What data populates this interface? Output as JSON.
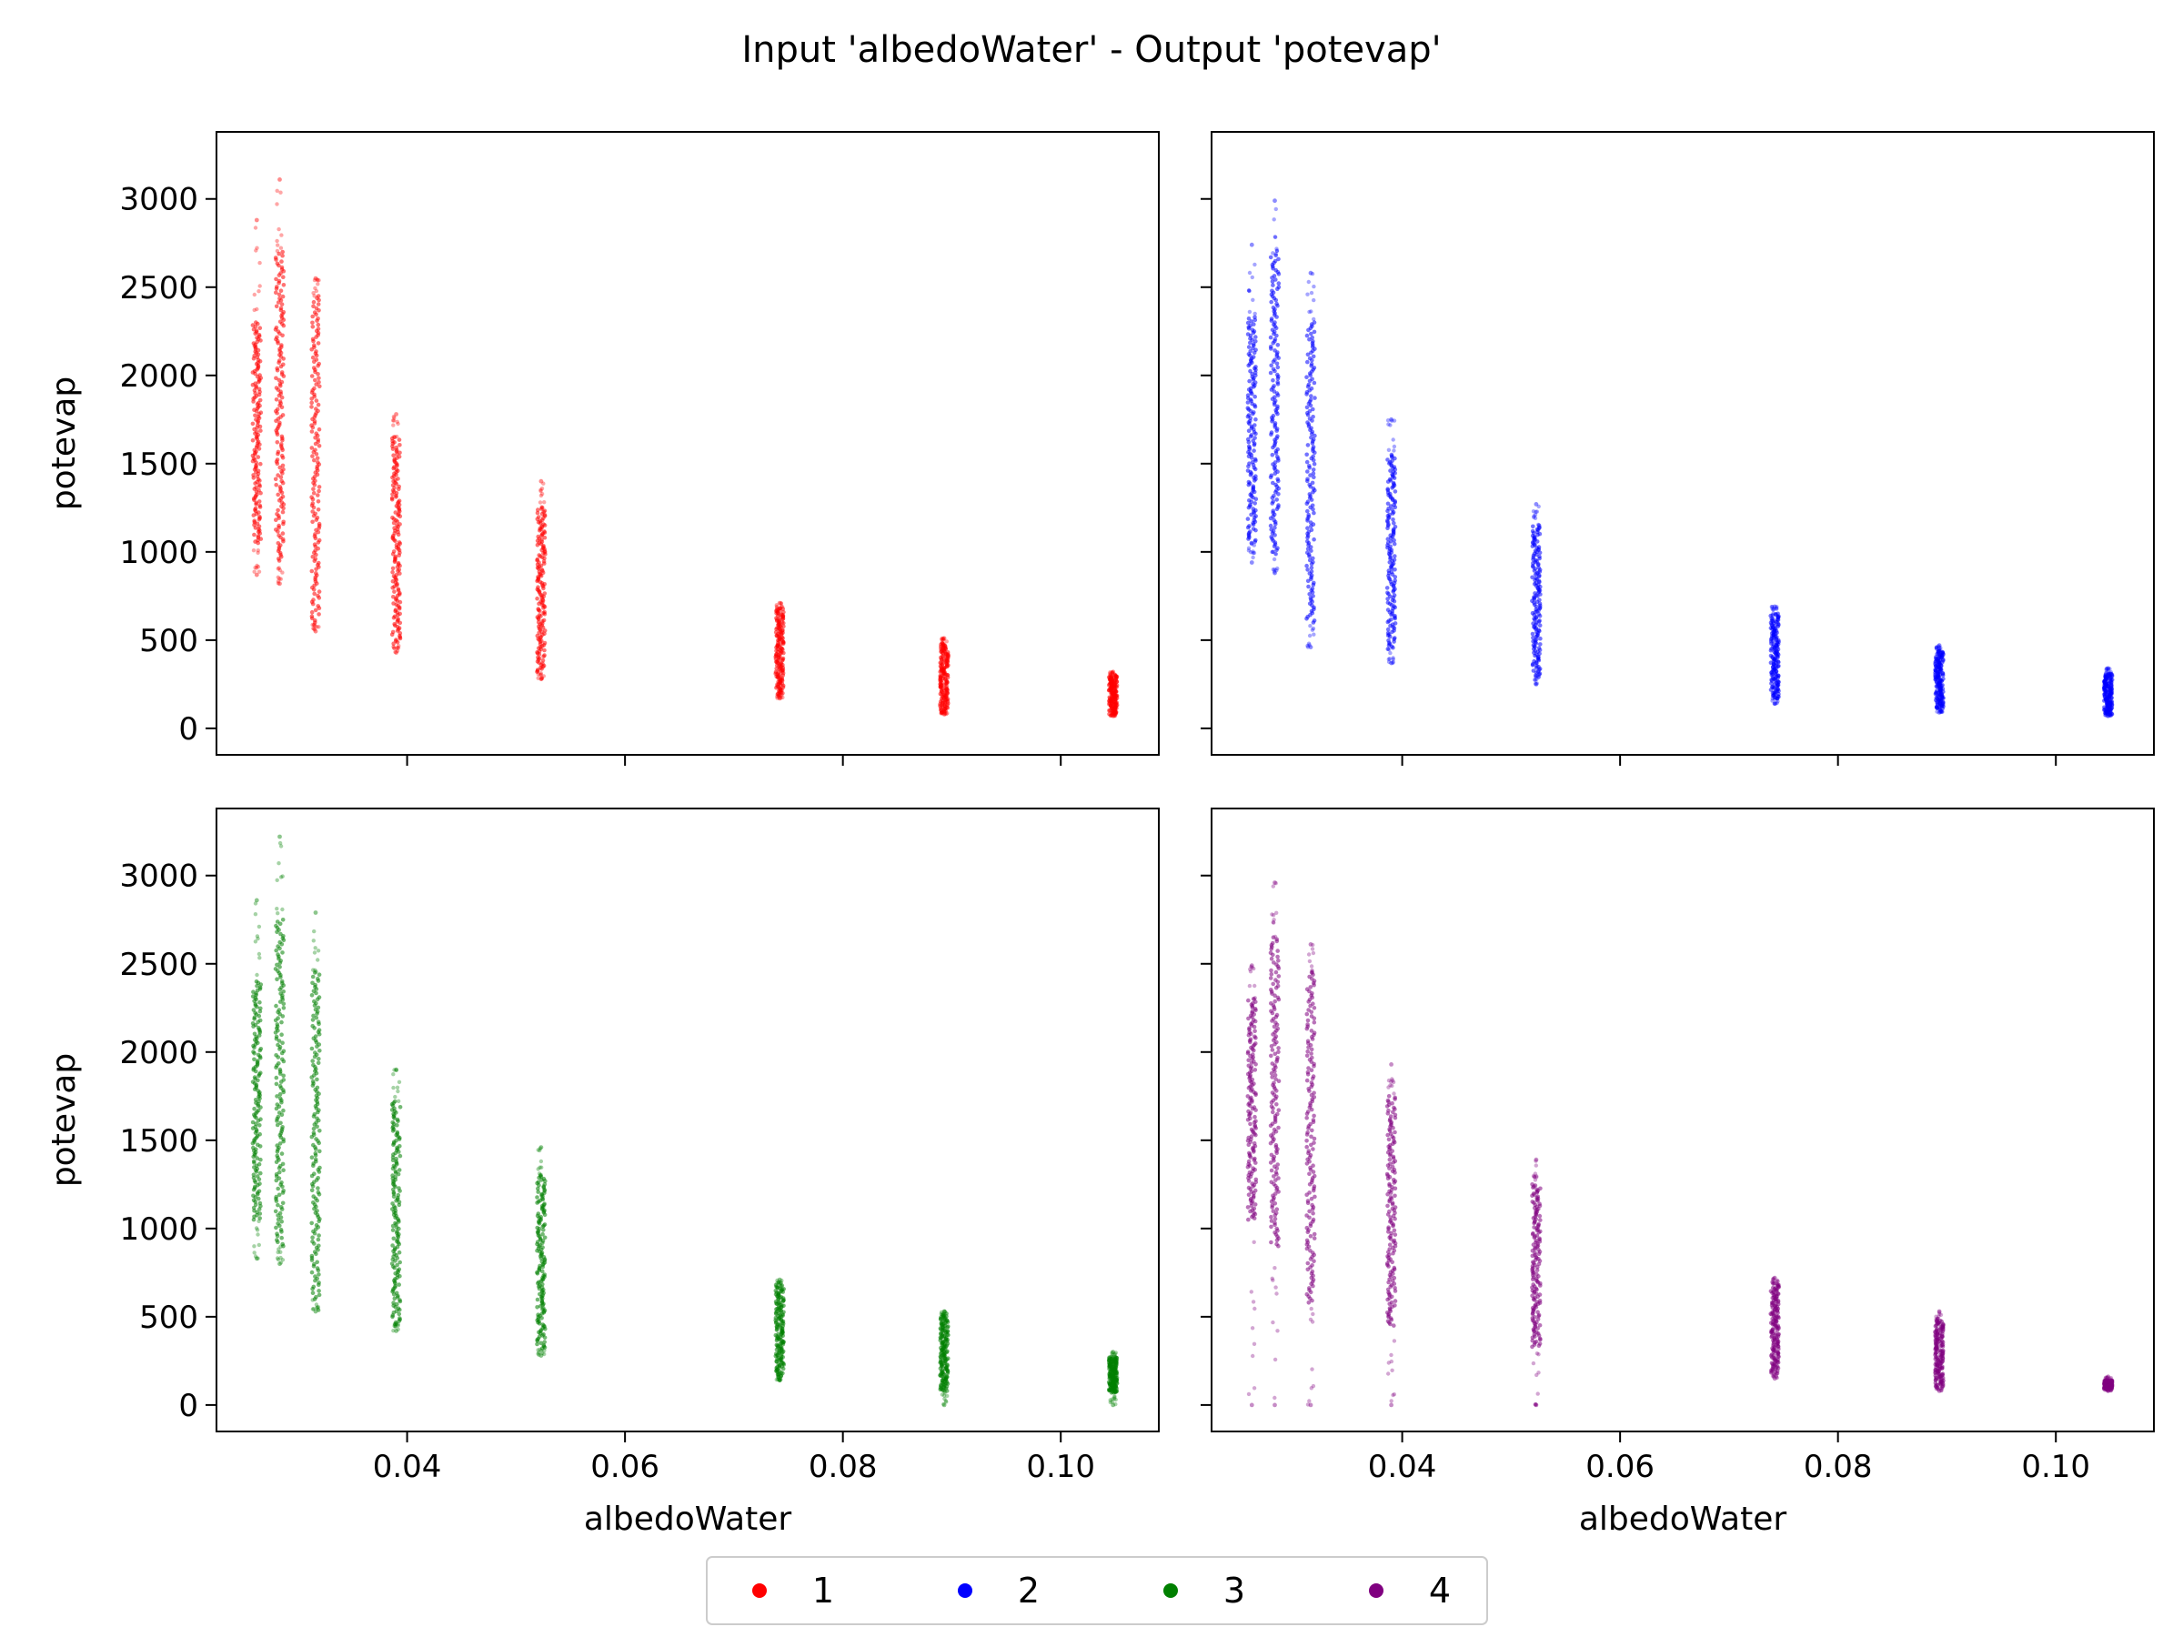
{
  "chart_data": {
    "type": "scatter",
    "title": "Input 'albedoWater' - Output 'potevap'",
    "xlabel": "albedoWater",
    "ylabel": "potevap",
    "xlim": [
      0.0225,
      0.109
    ],
    "ylim": [
      -150,
      3380
    ],
    "x_ticks": [
      0.04,
      0.06,
      0.08,
      0.1
    ],
    "x_tick_labels": [
      "0.04",
      "0.06",
      "0.08",
      "0.10"
    ],
    "y_ticks": [
      0,
      500,
      1000,
      1500,
      2000,
      2500,
      3000
    ],
    "y_tick_labels": [
      "0",
      "500",
      "1000",
      "1500",
      "2000",
      "2500",
      "3000"
    ],
    "grid": false,
    "legend_position": "bottom-center",
    "legend": [
      "1",
      "2",
      "3",
      "4"
    ],
    "colors": [
      "#ff0000",
      "#0000ff",
      "#008000",
      "#800080"
    ],
    "panels": [
      {
        "series": "1",
        "color": "#ff0000",
        "columns": [
          {
            "x": 0.0262,
            "min": 870,
            "max": 2880,
            "dense_min": 1050,
            "dense_max": 2300
          },
          {
            "x": 0.0283,
            "min": 820,
            "max": 3110,
            "dense_min": 950,
            "dense_max": 2700
          },
          {
            "x": 0.0316,
            "min": 550,
            "max": 2550,
            "dense_min": 600,
            "dense_max": 2450
          },
          {
            "x": 0.039,
            "min": 430,
            "max": 1780,
            "dense_min": 480,
            "dense_max": 1650
          },
          {
            "x": 0.0523,
            "min": 280,
            "max": 1400,
            "dense_min": 320,
            "dense_max": 1250
          },
          {
            "x": 0.0742,
            "min": 170,
            "max": 710,
            "dense_min": 190,
            "dense_max": 680
          },
          {
            "x": 0.0893,
            "min": 80,
            "max": 510,
            "dense_min": 90,
            "dense_max": 480
          },
          {
            "x": 0.1048,
            "min": 70,
            "max": 320,
            "dense_min": 80,
            "dense_max": 300
          }
        ]
      },
      {
        "series": "2",
        "color": "#0000ff",
        "columns": [
          {
            "x": 0.0262,
            "min": 940,
            "max": 2740,
            "dense_min": 1050,
            "dense_max": 2330
          },
          {
            "x": 0.0283,
            "min": 880,
            "max": 2990,
            "dense_min": 1000,
            "dense_max": 2680
          },
          {
            "x": 0.0316,
            "min": 460,
            "max": 2580,
            "dense_min": 600,
            "dense_max": 2300
          },
          {
            "x": 0.039,
            "min": 370,
            "max": 1750,
            "dense_min": 450,
            "dense_max": 1550
          },
          {
            "x": 0.0523,
            "min": 250,
            "max": 1270,
            "dense_min": 300,
            "dense_max": 1150
          },
          {
            "x": 0.0742,
            "min": 140,
            "max": 690,
            "dense_min": 170,
            "dense_max": 650
          },
          {
            "x": 0.0893,
            "min": 90,
            "max": 470,
            "dense_min": 110,
            "dense_max": 440
          },
          {
            "x": 0.1048,
            "min": 70,
            "max": 340,
            "dense_min": 80,
            "dense_max": 310
          }
        ]
      },
      {
        "series": "3",
        "color": "#008000",
        "columns": [
          {
            "x": 0.0262,
            "min": 830,
            "max": 2860,
            "dense_min": 1050,
            "dense_max": 2400
          },
          {
            "x": 0.0283,
            "min": 800,
            "max": 3220,
            "dense_min": 900,
            "dense_max": 2750
          },
          {
            "x": 0.0316,
            "min": 530,
            "max": 2790,
            "dense_min": 600,
            "dense_max": 2450
          },
          {
            "x": 0.039,
            "min": 420,
            "max": 1900,
            "dense_min": 460,
            "dense_max": 1720
          },
          {
            "x": 0.0523,
            "min": 280,
            "max": 1460,
            "dense_min": 320,
            "dense_max": 1300
          },
          {
            "x": 0.0742,
            "min": 140,
            "max": 710,
            "dense_min": 160,
            "dense_max": 680
          },
          {
            "x": 0.0893,
            "min": 0,
            "max": 530,
            "dense_min": 80,
            "dense_max": 510
          },
          {
            "x": 0.1048,
            "min": 0,
            "max": 300,
            "dense_min": 70,
            "dense_max": 270
          }
        ]
      },
      {
        "series": "4",
        "color": "#800080",
        "columns": [
          {
            "x": 0.0262,
            "min": 0,
            "max": 2490,
            "dense_min": 1050,
            "dense_max": 2300
          },
          {
            "x": 0.0283,
            "min": 0,
            "max": 2960,
            "dense_min": 900,
            "dense_max": 2650
          },
          {
            "x": 0.0316,
            "min": 0,
            "max": 2610,
            "dense_min": 580,
            "dense_max": 2450
          },
          {
            "x": 0.039,
            "min": 0,
            "max": 1930,
            "dense_min": 450,
            "dense_max": 1750
          },
          {
            "x": 0.0523,
            "min": 0,
            "max": 1390,
            "dense_min": 330,
            "dense_max": 1250
          },
          {
            "x": 0.0742,
            "min": 150,
            "max": 720,
            "dense_min": 180,
            "dense_max": 690
          },
          {
            "x": 0.0893,
            "min": 80,
            "max": 530,
            "dense_min": 100,
            "dense_max": 480
          },
          {
            "x": 0.1048,
            "min": 80,
            "max": 160,
            "dense_min": 90,
            "dense_max": 140
          }
        ]
      }
    ]
  }
}
